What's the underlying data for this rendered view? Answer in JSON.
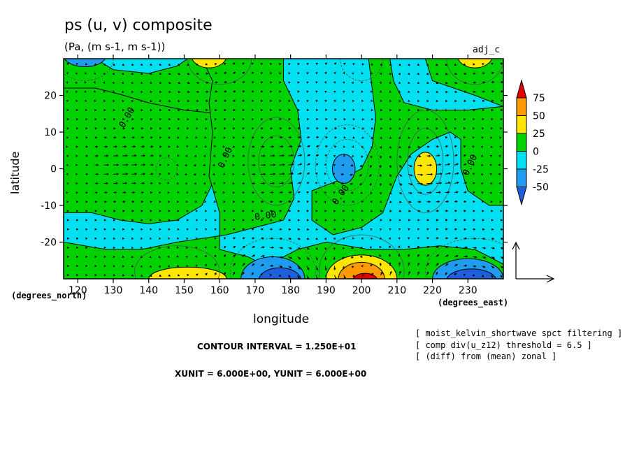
{
  "title": "ps (u, v) composite",
  "subtitle": "(Pa, (m s-1, m s-1))",
  "experiment_label": "adj_c",
  "x_unit_label": "(degrees_east)",
  "y_unit_label": "(degrees_north)",
  "notes": {
    "contour_interval": "CONTOUR INTERVAL = 1.250E+01",
    "vector_units": "XUNIT = 6.000E+00, YUNIT = 6.000E+00"
  },
  "filter_lines": [
    "[ moist_kelvin_shortwave spct filtering ]",
    "[ comp div(u_z12) threshold = 6.5 ]",
    "[ (diff) from (mean) zonal ]"
  ],
  "colors": {
    "c_lt_-50": "#1f5fdc",
    "c_-50_-25": "#1e9cf0",
    "c_-25_0": "#00e0f0",
    "c_0_25": "#00d200",
    "c_25_50": "#ffe600",
    "c_50_75": "#ff9a00",
    "c_gt_75": "#e60000"
  },
  "chart_data": {
    "type": "contour",
    "variable": "ps",
    "vector_field": "(u, v)",
    "xlabel": "longitude",
    "ylabel": "latitude",
    "xlim": [
      116,
      240
    ],
    "ylim": [
      -30,
      30
    ],
    "x_ticks": [
      120,
      130,
      140,
      150,
      160,
      170,
      180,
      190,
      200,
      210,
      220,
      230
    ],
    "y_ticks": [
      -20,
      -10,
      0,
      10,
      20
    ],
    "contour_interval": 12.5,
    "zero_contour_label": "0.00",
    "colorbar": {
      "levels": [
        75,
        50,
        25,
        0,
        -25,
        -50
      ],
      "colors": [
        "#e60000",
        "#ff9a00",
        "#ffe600",
        "#00d200",
        "#00e0f0",
        "#1e9cf0",
        "#1f5fdc"
      ]
    },
    "features": [
      {
        "type": "low",
        "lon": 195,
        "lat": 0,
        "value": -35
      },
      {
        "type": "high",
        "lon": 218,
        "lat": 0,
        "value": 30
      },
      {
        "type": "low",
        "lon": 145,
        "lat": 0,
        "value": -10
      },
      {
        "type": "high",
        "lon": 200,
        "lat": -29,
        "value": 80
      },
      {
        "type": "high",
        "lon": 150,
        "lat": -29,
        "value": 30
      },
      {
        "type": "low",
        "lon": 175,
        "lat": -29,
        "value": -55
      },
      {
        "type": "low",
        "lon": 230,
        "lat": -29,
        "value": -55
      },
      {
        "type": "low",
        "lon": 122,
        "lat": 29,
        "value": -30
      },
      {
        "type": "high",
        "lon": 157,
        "lat": 29,
        "value": 30
      },
      {
        "type": "high",
        "lon": 232,
        "lat": 29,
        "value": 30
      },
      {
        "type": "low",
        "lon": 200,
        "lat": 29,
        "value": -30
      }
    ]
  }
}
